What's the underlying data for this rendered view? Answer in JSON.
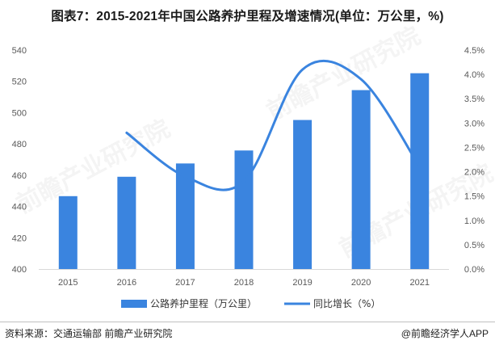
{
  "header": {
    "title": "图表7：2015-2021年中国公路养护里程及增速情况(单位：万公里，%)"
  },
  "footer": {
    "source": "资料来源：交通运输部 前瞻产业研究院",
    "brand": "@前瞻经济学人APP"
  },
  "watermark": {
    "text": "前瞻产业研究院"
  },
  "colors": {
    "bar": "#3a84df",
    "line": "#3a84df",
    "axis_text": "#595959",
    "grid": "#e0e0e0"
  },
  "chart_data": {
    "type": "bar",
    "categories": [
      "2015",
      "2016",
      "2017",
      "2018",
      "2019",
      "2020",
      "2021"
    ],
    "series": [
      {
        "name": "公路养护里程（万公里）",
        "type": "bar",
        "axis": "left",
        "values": [
          446.6,
          459.0,
          467.5,
          475.8,
          495.3,
          514.4,
          525.2
        ]
      },
      {
        "name": "同比增长（%）",
        "type": "line",
        "axis": "right",
        "smooth": true,
        "values": [
          null,
          2.8,
          1.9,
          1.8,
          4.1,
          3.9,
          2.1
        ]
      }
    ],
    "ylim_left": [
      400,
      540
    ],
    "yticks_left": [
      "400",
      "420",
      "440",
      "460",
      "480",
      "500",
      "520",
      "540"
    ],
    "ylim_right": [
      0,
      4.5
    ],
    "yticks_right": [
      "0.0%",
      "0.5%",
      "1.0%",
      "1.5%",
      "2.0%",
      "2.5%",
      "3.0%",
      "3.5%",
      "4.0%",
      "4.5%"
    ],
    "legend_position": "bottom",
    "grid": false
  }
}
